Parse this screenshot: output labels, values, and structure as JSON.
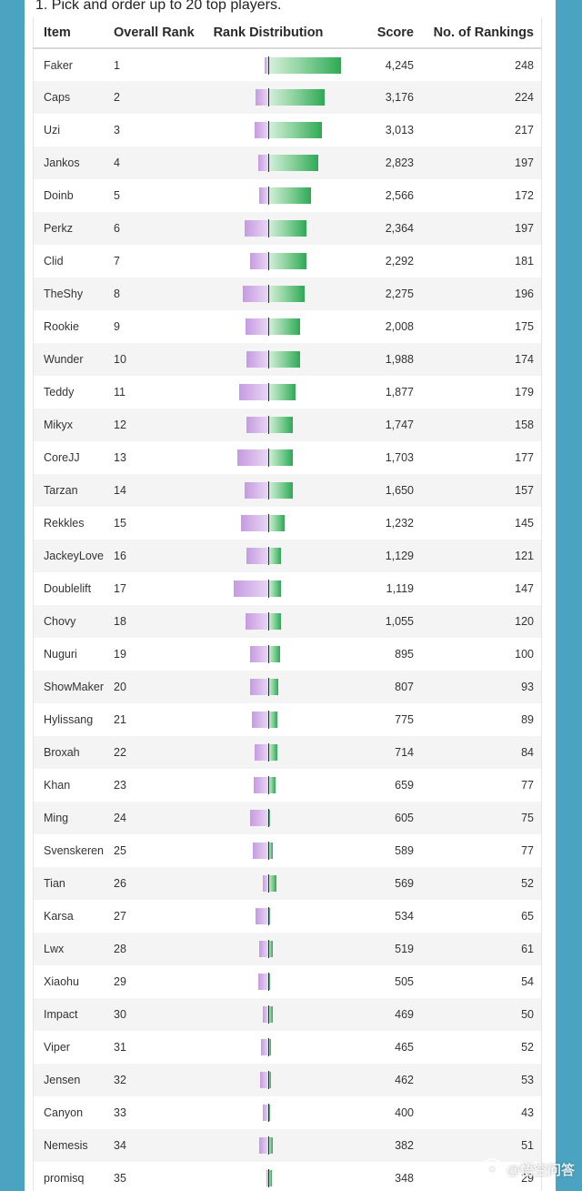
{
  "question": "1. Pick and order up to 20 top players.",
  "columns": {
    "item": "Item",
    "overall_rank": "Overall Rank",
    "rank_distribution": "Rank Distribution",
    "score": "Score",
    "num_rankings": "No. of Rankings"
  },
  "colors": {
    "negative": "#c69be0",
    "positive": "#2daa55"
  },
  "rows": [
    {
      "item": "Faker",
      "rank": "1",
      "score": "4,245",
      "count": "248",
      "neg": 0.05,
      "pos": 1.0
    },
    {
      "item": "Caps",
      "rank": "2",
      "score": "3,176",
      "count": "224",
      "neg": 0.17,
      "pos": 0.78
    },
    {
      "item": "Uzi",
      "rank": "3",
      "score": "3,013",
      "count": "217",
      "neg": 0.19,
      "pos": 0.74
    },
    {
      "item": "Jankos",
      "rank": "4",
      "score": "2,823",
      "count": "197",
      "neg": 0.14,
      "pos": 0.69
    },
    {
      "item": "Doinb",
      "rank": "5",
      "score": "2,566",
      "count": "172",
      "neg": 0.12,
      "pos": 0.59
    },
    {
      "item": "Perkz",
      "rank": "6",
      "score": "2,364",
      "count": "197",
      "neg": 0.32,
      "pos": 0.52
    },
    {
      "item": "Clid",
      "rank": "7",
      "score": "2,292",
      "count": "181",
      "neg": 0.25,
      "pos": 0.52
    },
    {
      "item": "TheShy",
      "rank": "8",
      "score": "2,275",
      "count": "196",
      "neg": 0.35,
      "pos": 0.5
    },
    {
      "item": "Rookie",
      "rank": "9",
      "score": "2,008",
      "count": "175",
      "neg": 0.31,
      "pos": 0.44
    },
    {
      "item": "Wunder",
      "rank": "10",
      "score": "1,988",
      "count": "174",
      "neg": 0.3,
      "pos": 0.44
    },
    {
      "item": "Teddy",
      "rank": "11",
      "score": "1,877",
      "count": "179",
      "neg": 0.4,
      "pos": 0.38
    },
    {
      "item": "Mikyx",
      "rank": "12",
      "score": "1,747",
      "count": "158",
      "neg": 0.3,
      "pos": 0.34
    },
    {
      "item": "CoreJJ",
      "rank": "13",
      "score": "1,703",
      "count": "177",
      "neg": 0.43,
      "pos": 0.34
    },
    {
      "item": "Tarzan",
      "rank": "14",
      "score": "1,650",
      "count": "157",
      "neg": 0.33,
      "pos": 0.34
    },
    {
      "item": "Rekkles",
      "rank": "15",
      "score": "1,232",
      "count": "145",
      "neg": 0.38,
      "pos": 0.22
    },
    {
      "item": "JackeyLove",
      "rank": "16",
      "score": "1,129",
      "count": "121",
      "neg": 0.3,
      "pos": 0.18
    },
    {
      "item": "Doublelift",
      "rank": "17",
      "score": "1,119",
      "count": "147",
      "neg": 0.48,
      "pos": 0.17
    },
    {
      "item": "Chovy",
      "rank": "18",
      "score": "1,055",
      "count": "120",
      "neg": 0.31,
      "pos": 0.17
    },
    {
      "item": "Nuguri",
      "rank": "19",
      "score": "895",
      "count": "100",
      "neg": 0.25,
      "pos": 0.16
    },
    {
      "item": "ShowMaker",
      "rank": "20",
      "score": "807",
      "count": "93",
      "neg": 0.25,
      "pos": 0.14
    },
    {
      "item": "Hylissang",
      "rank": "21",
      "score": "775",
      "count": "89",
      "neg": 0.22,
      "pos": 0.13
    },
    {
      "item": "Broxah",
      "rank": "22",
      "score": "714",
      "count": "84",
      "neg": 0.19,
      "pos": 0.12
    },
    {
      "item": "Khan",
      "rank": "23",
      "score": "659",
      "count": "77",
      "neg": 0.2,
      "pos": 0.1
    },
    {
      "item": "Ming",
      "rank": "24",
      "score": "605",
      "count": "75",
      "neg": 0.25,
      "pos": 0.03
    },
    {
      "item": "Svenskeren",
      "rank": "25",
      "score": "589",
      "count": "77",
      "neg": 0.21,
      "pos": 0.06
    },
    {
      "item": "Tian",
      "rank": "26",
      "score": "569",
      "count": "52",
      "neg": 0.07,
      "pos": 0.11
    },
    {
      "item": "Karsa",
      "rank": "27",
      "score": "534",
      "count": "65",
      "neg": 0.17,
      "pos": 0.03
    },
    {
      "item": "Lwx",
      "rank": "28",
      "score": "519",
      "count": "61",
      "neg": 0.12,
      "pos": 0.06
    },
    {
      "item": "Xiaohu",
      "rank": "29",
      "score": "505",
      "count": "54",
      "neg": 0.14,
      "pos": 0.03
    },
    {
      "item": "Impact",
      "rank": "30",
      "score": "469",
      "count": "50",
      "neg": 0.07,
      "pos": 0.06
    },
    {
      "item": "Viper",
      "rank": "31",
      "score": "465",
      "count": "52",
      "neg": 0.1,
      "pos": 0.04
    },
    {
      "item": "Jensen",
      "rank": "32",
      "score": "462",
      "count": "53",
      "neg": 0.11,
      "pos": 0.04
    },
    {
      "item": "Canyon",
      "rank": "33",
      "score": "400",
      "count": "43",
      "neg": 0.07,
      "pos": 0.03
    },
    {
      "item": "Nemesis",
      "rank": "34",
      "score": "382",
      "count": "51",
      "neg": 0.12,
      "pos": 0.06
    },
    {
      "item": "promisq",
      "rank": "35",
      "score": "348",
      "count": "29",
      "neg": 0.03,
      "pos": 0.05
    }
  ],
  "watermark": "@悟空问答"
}
